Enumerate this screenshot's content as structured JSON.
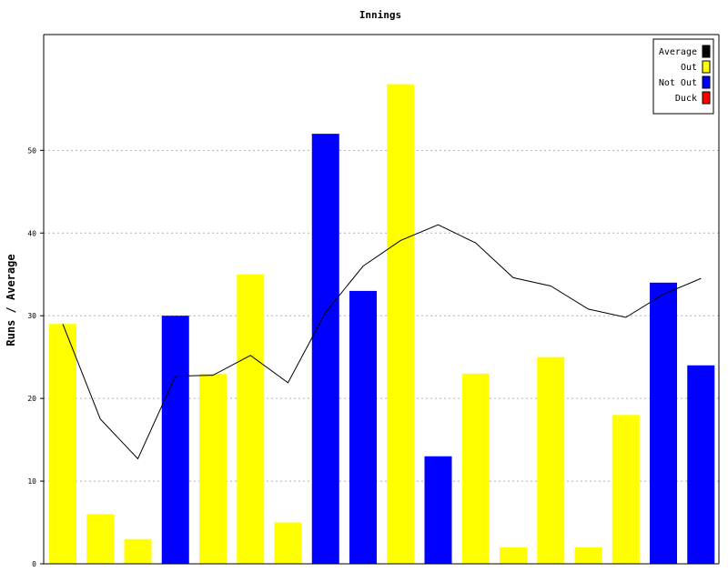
{
  "chart_data": {
    "type": "bar",
    "title": "Innings",
    "xlabel": "",
    "ylabel": "Runs / Average",
    "ylim": [
      0,
      64
    ],
    "yticks": [
      0,
      10,
      20,
      30,
      40,
      50
    ],
    "grid": true,
    "legend_position": "top-right",
    "legend": [
      {
        "name": "Average",
        "color": "#000000"
      },
      {
        "name": "Out",
        "color": "#ffff00"
      },
      {
        "name": "Not Out",
        "color": "#0000ff"
      },
      {
        "name": "Duck",
        "color": "#ff0000"
      }
    ],
    "bars": [
      {
        "value": 29,
        "status": "Out"
      },
      {
        "value": 6,
        "status": "Out"
      },
      {
        "value": 3,
        "status": "Out"
      },
      {
        "value": 30,
        "status": "Not Out"
      },
      {
        "value": 23,
        "status": "Out"
      },
      {
        "value": 35,
        "status": "Out"
      },
      {
        "value": 5,
        "status": "Out"
      },
      {
        "value": 52,
        "status": "Not Out"
      },
      {
        "value": 33,
        "status": "Not Out"
      },
      {
        "value": 58,
        "status": "Out"
      },
      {
        "value": 13,
        "status": "Not Out"
      },
      {
        "value": 23,
        "status": "Out"
      },
      {
        "value": 2,
        "status": "Out"
      },
      {
        "value": 25,
        "status": "Out"
      },
      {
        "value": 2,
        "status": "Out"
      },
      {
        "value": 18,
        "status": "Out"
      },
      {
        "value": 34,
        "status": "Not Out"
      },
      {
        "value": 24,
        "status": "Not Out"
      }
    ],
    "average": [
      29,
      17.5,
      12.7,
      22.7,
      22.8,
      25.2,
      21.9,
      30.4,
      36,
      39.1,
      41,
      38.8,
      34.6,
      33.6,
      30.8,
      29.8,
      32.6,
      34.5
    ]
  }
}
